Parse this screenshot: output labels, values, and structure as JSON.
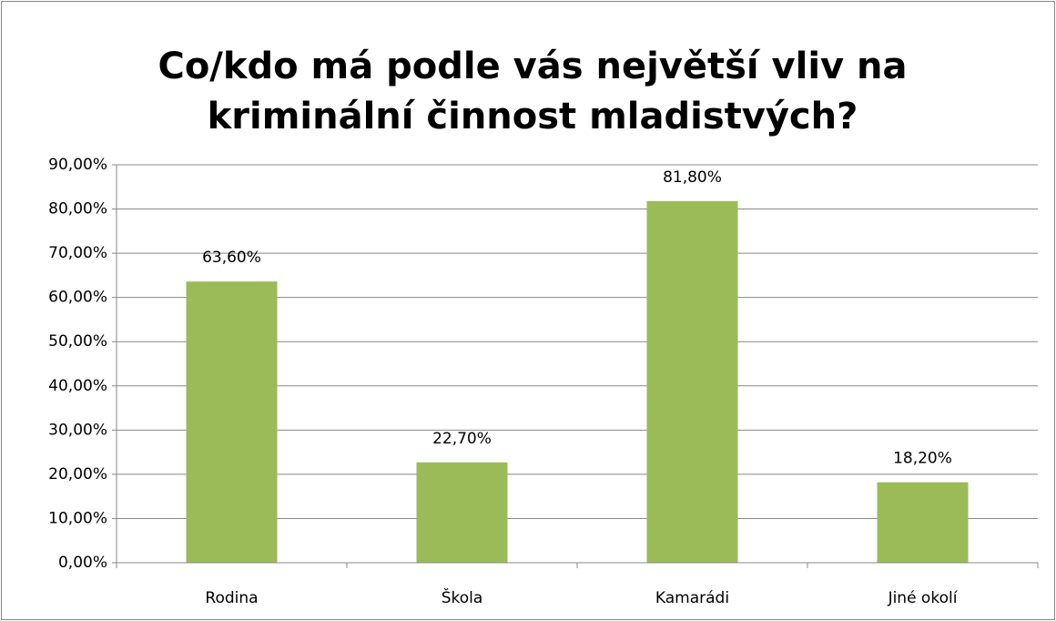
{
  "chart_data": {
    "type": "bar",
    "title": [
      "Co/kdo má podle vás největší vliv na",
      "kriminální činnost mladistvých?"
    ],
    "categories": [
      "Rodina",
      "Škola",
      "Kamarádi",
      "Jiné okolí"
    ],
    "values": [
      63.6,
      22.7,
      81.8,
      18.2
    ],
    "value_labels": [
      "63,60%",
      "22,70%",
      "81,80%",
      "18,20%"
    ],
    "color": "#9bbb59",
    "ylim": [
      0,
      90
    ],
    "yticks": [
      {
        "value": 0,
        "label": "0,00%"
      },
      {
        "value": 10,
        "label": "10,00%"
      },
      {
        "value": 20,
        "label": "20,00%"
      },
      {
        "value": 30,
        "label": "30,00%"
      },
      {
        "value": 40,
        "label": "40,00%"
      },
      {
        "value": 50,
        "label": "50,00%"
      },
      {
        "value": 60,
        "label": "60,00%"
      },
      {
        "value": 70,
        "label": "70,00%"
      },
      {
        "value": 80,
        "label": "80,00%"
      },
      {
        "value": 90,
        "label": "90,00%"
      }
    ],
    "grid": true
  }
}
